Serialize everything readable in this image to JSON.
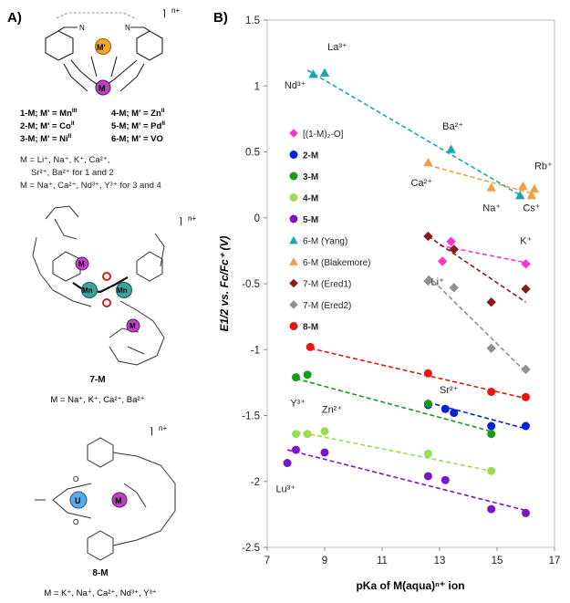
{
  "left_panel": {
    "panel_label": "A)",
    "charge_sup": "n+",
    "legend_lines": [
      [
        "1-M; M' = Mn",
        "III",
        "4-M; M' = Zn",
        "II"
      ],
      [
        "2-M; M' = Co",
        "II",
        "5-M; M' = Pd",
        "II"
      ],
      [
        "3-M; M' = Ni",
        "II",
        "6-M; M' = VO",
        ""
      ]
    ],
    "m_line1": "M = Li⁺, Na⁺, K⁺, Ca²⁺,",
    "m_line2": "Sr²⁺, Ba²⁺ for 1 and 2",
    "m_line3": "M = Na⁺, Ca²⁺, Nd³⁺, Y³⁺ for 3 and 4",
    "atom_m_prime": "M'",
    "atom_m": "M",
    "atom_mn": "Mn",
    "atom_u": "U",
    "atom_o": "O",
    "atom_n": "N",
    "compound7": "7-M",
    "compound7_m": "M = Na⁺, K⁺, Ca²⁺, Ba²⁺",
    "compound8": "8-M",
    "compound8_m": "M = K⁺, Na⁺, Ca²⁺, Nd³⁺, Y³⁺"
  },
  "chart_data": {
    "type": "scatter",
    "panel_label": "B)",
    "xlabel": "pKa of M(aqua)ⁿ⁺ ion",
    "ylabel": "E1/2 vs. Fc/Fc⁺ (V)",
    "xlim": [
      7,
      17
    ],
    "ylim": [
      -2.5,
      1.5
    ],
    "xticks": [
      7,
      9,
      11,
      13,
      15,
      17
    ],
    "yticks": [
      1.5,
      1,
      0.5,
      0,
      -0.5,
      -1,
      -1.5,
      -2,
      -2.5
    ],
    "series": [
      {
        "name": "[(1-M)₂-O]",
        "color": "#ff33cc",
        "marker": "diamond",
        "points": [
          [
            13.1,
            -0.33
          ],
          [
            13.4,
            -0.18
          ],
          [
            16.0,
            -0.35
          ],
          [
            13.5,
            -0.24
          ]
        ],
        "trend": [
          [
            13.0,
            -0.21
          ],
          [
            16.0,
            -0.34
          ]
        ]
      },
      {
        "name": "2-M",
        "color": "#0022dd",
        "marker": "circle",
        "points": [
          [
            12.6,
            -1.42
          ],
          [
            13.2,
            -1.45
          ],
          [
            13.5,
            -1.48
          ],
          [
            14.8,
            -1.58
          ],
          [
            16.0,
            -1.58
          ]
        ],
        "trend": [
          [
            12.6,
            -1.4
          ],
          [
            16.0,
            -1.6
          ]
        ]
      },
      {
        "name": "3-M",
        "color": "#1a9a1a",
        "marker": "circle",
        "points": [
          [
            8.0,
            -1.21
          ],
          [
            8.4,
            -1.19
          ],
          [
            12.6,
            -1.41
          ],
          [
            14.8,
            -1.64
          ]
        ],
        "trend": [
          [
            8.0,
            -1.22
          ],
          [
            14.8,
            -1.62
          ]
        ]
      },
      {
        "name": "4-M",
        "color": "#99dd55",
        "marker": "circle",
        "points": [
          [
            8.0,
            -1.64
          ],
          [
            8.4,
            -1.64
          ],
          [
            9.0,
            -1.62
          ],
          [
            12.6,
            -1.79
          ],
          [
            14.8,
            -1.92
          ]
        ],
        "trend": [
          [
            8.0,
            -1.62
          ],
          [
            14.8,
            -1.92
          ]
        ]
      },
      {
        "name": "5-M",
        "color": "#7a16c8",
        "marker": "circle",
        "points": [
          [
            7.7,
            -1.86
          ],
          [
            8.0,
            -1.76
          ],
          [
            9.0,
            -1.78
          ],
          [
            12.6,
            -1.96
          ],
          [
            13.2,
            -1.99
          ],
          [
            14.8,
            -2.21
          ],
          [
            16.0,
            -2.24
          ]
        ],
        "trend": [
          [
            7.7,
            -1.76
          ],
          [
            16.0,
            -2.22
          ]
        ]
      },
      {
        "name": "6-M (Yang)",
        "color": "#19a5b5",
        "marker": "triangle",
        "points": [
          [
            8.6,
            1.09
          ],
          [
            9.0,
            1.1
          ],
          [
            13.4,
            0.52
          ],
          [
            15.8,
            0.17
          ]
        ],
        "trend": [
          [
            8.4,
            1.12
          ],
          [
            15.9,
            0.16
          ]
        ]
      },
      {
        "name": "6-M (Blakemore)",
        "color": "#f0a040",
        "marker": "triangle",
        "points": [
          [
            12.6,
            0.42
          ],
          [
            14.8,
            0.23
          ],
          [
            15.9,
            0.24
          ],
          [
            16.3,
            0.22
          ],
          [
            16.2,
            0.17
          ]
        ],
        "trend": [
          [
            12.6,
            0.4
          ],
          [
            16.3,
            0.18
          ]
        ]
      },
      {
        "name": "7-M (Ered1)",
        "color": "#8b1a1a",
        "marker": "diamond",
        "points": [
          [
            12.6,
            -0.14
          ],
          [
            13.5,
            -0.24
          ],
          [
            14.8,
            -0.64
          ],
          [
            16.0,
            -0.54
          ]
        ],
        "trend": [
          [
            12.6,
            -0.14
          ],
          [
            16.0,
            -0.64
          ]
        ]
      },
      {
        "name": "7-M (Ered2)",
        "color": "#909090",
        "marker": "diamond",
        "points": [
          [
            12.6,
            -0.48
          ],
          [
            13.5,
            -0.53
          ],
          [
            14.8,
            -0.99
          ],
          [
            16.0,
            -1.15
          ]
        ],
        "trend": [
          [
            12.6,
            -0.44
          ],
          [
            16.0,
            -1.17
          ]
        ]
      },
      {
        "name": "8-M",
        "color": "#ee1111",
        "marker": "circle",
        "points": [
          [
            8.5,
            -0.98
          ],
          [
            12.6,
            -1.18
          ],
          [
            14.8,
            -1.32
          ],
          [
            16.0,
            -1.36
          ]
        ],
        "trend": [
          [
            8.5,
            -0.99
          ],
          [
            16.0,
            -1.37
          ]
        ]
      }
    ],
    "annotations": [
      {
        "text": "La³⁺",
        "x": 9.1,
        "y": 1.27
      },
      {
        "text": "Nd³⁺",
        "x": 7.6,
        "y": 0.98
      },
      {
        "text": "Ba²⁺",
        "x": 13.1,
        "y": 0.67
      },
      {
        "text": "Ca²⁺",
        "x": 12.0,
        "y": 0.24
      },
      {
        "text": "Rb⁺",
        "x": 16.3,
        "y": 0.37
      },
      {
        "text": "Na⁺",
        "x": 14.5,
        "y": 0.05
      },
      {
        "text": "Cs⁺",
        "x": 15.9,
        "y": 0.05
      },
      {
        "text": "K⁺",
        "x": 15.8,
        "y": -0.2
      },
      {
        "text": "Li⁺",
        "x": 12.7,
        "y": -0.51
      },
      {
        "text": "Y³⁺",
        "x": 7.8,
        "y": -1.43
      },
      {
        "text": "Sr²⁺",
        "x": 13.0,
        "y": -1.33
      },
      {
        "text": "Zn²⁺",
        "x": 8.9,
        "y": -1.48
      },
      {
        "text": "Lu³⁺",
        "x": 7.3,
        "y": -2.08
      }
    ]
  }
}
